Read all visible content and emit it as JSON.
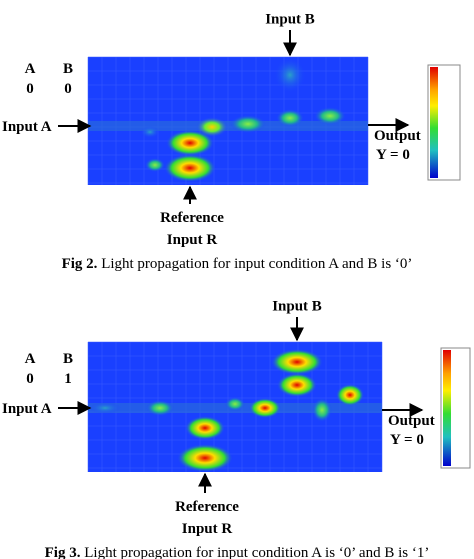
{
  "figures": [
    {
      "input_b": "Input B",
      "header": [
        "A",
        "B"
      ],
      "bits": [
        "0",
        "0"
      ],
      "input_a": "Input A",
      "output": "Output",
      "output_value": "Y  = 0",
      "reference": [
        "Reference",
        "Input R"
      ],
      "caption_label": "Fig 2.",
      "caption": " Light propagation for input condition A and B is ‘0’"
    },
    {
      "input_b": "Input B",
      "header": [
        "A",
        "B"
      ],
      "bits": [
        "0",
        "1"
      ],
      "input_a": "Input A",
      "output": "Output",
      "output_value": "Y  = 0",
      "reference": [
        "Reference",
        "Input R"
      ],
      "caption_label": "Fig 3.",
      "caption": " Light propagation for input condition A is ‘0’ and B is ‘1’"
    }
  ]
}
